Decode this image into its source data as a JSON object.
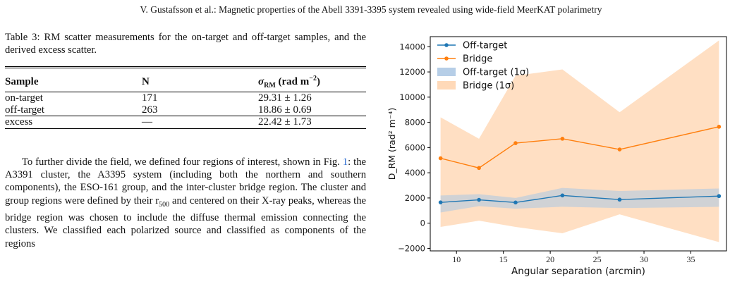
{
  "header": "V. Gustafsson  et al.: Magnetic properties of the Abell 3391-3395 system revealed using wide-field MeerKAT polarimetry",
  "table": {
    "caption": "Table 3: RM scatter measurements for the on-target and off-target samples, and the derived excess scatter.",
    "headers": [
      "Sample",
      "N",
      "σRM (rad m−2)"
    ],
    "rows": [
      [
        "on-target",
        "171",
        "29.31 ± 1.26"
      ],
      [
        "off-target",
        "263",
        "18.86 ± 0.69"
      ],
      [
        "excess",
        "—",
        "22.42 ± 1.73"
      ]
    ]
  },
  "paragraph": {
    "part1": "To further divide the field, we defined four regions of interest, shown in Fig. ",
    "fig_ref": "1",
    "part2": ": the A3391 cluster, the A3395 system (including both the northern and southern components), the ESO-161 group, and the inter-cluster bridge region. The cluster and group regions were defined by their r",
    "sub": "500",
    "part3": " and centered on their X-ray peaks, whereas the bridge region was chosen to include the diffuse thermal emission connecting the clusters. We classified each polarized source and classified as components of the regions"
  },
  "chart_data": {
    "type": "line",
    "xlabel": "Angular separation (arcmin)",
    "ylabel": "D_RM (rad² m⁻⁴)",
    "xlim": [
      7.2,
      38.8
    ],
    "ylim": [
      -2200,
      14800
    ],
    "xticks": [
      10,
      15,
      20,
      25,
      30,
      35
    ],
    "yticks": [
      -2000,
      0,
      2000,
      4000,
      6000,
      8000,
      10000,
      12000,
      14000
    ],
    "grid": false,
    "legend_position": "top-left",
    "series": [
      {
        "name": "Off-target",
        "color": "#1f77b4",
        "x": [
          8.3,
          12.4,
          16.3,
          21.3,
          27.4,
          38.0
        ],
        "y": [
          1650,
          1850,
          1640,
          2200,
          1870,
          2150
        ],
        "band_lower": [
          850,
          1350,
          1150,
          1300,
          1200,
          1300
        ],
        "band_upper": [
          2200,
          2300,
          2000,
          2800,
          2550,
          2750
        ],
        "band_name": "Off-target (1σ)",
        "band_color": "#a9c6e3"
      },
      {
        "name": "Bridge",
        "color": "#ff7f0e",
        "x": [
          8.3,
          12.4,
          16.3,
          21.3,
          27.4,
          38.0
        ],
        "y": [
          5150,
          4380,
          6350,
          6700,
          5850,
          7650
        ],
        "band_lower": [
          -300,
          200,
          -300,
          -800,
          700,
          -1500
        ],
        "band_upper": [
          8400,
          6700,
          11700,
          12200,
          8800,
          14500
        ],
        "band_name": "Bridge (1σ)",
        "band_color": "#ffd9b8"
      }
    ]
  }
}
